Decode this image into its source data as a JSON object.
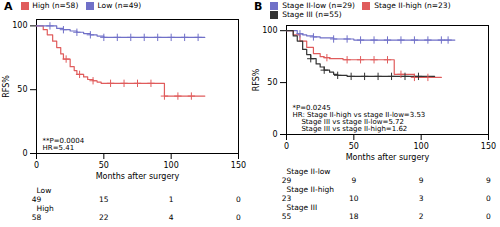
{
  "chart_data": [
    {
      "type": "step",
      "title": "A",
      "xlabel": "Months after surgery",
      "ylabel": "RFS%",
      "xlim": [
        0,
        150
      ],
      "ylim": [
        0,
        105
      ],
      "xticks": [
        0,
        50,
        100,
        150
      ],
      "yticks": [
        0,
        50,
        100
      ],
      "series": [
        {
          "name": "High (n=58)",
          "color": "#E05C5C",
          "x": [
            0,
            5,
            8,
            12,
            15,
            18,
            20,
            25,
            28,
            30,
            35,
            38,
            42,
            45,
            48,
            52,
            55,
            60,
            65,
            70,
            75,
            80,
            85,
            90,
            95,
            100,
            105,
            110,
            115,
            120,
            125
          ],
          "values": [
            100,
            97,
            93,
            88,
            83,
            78,
            74,
            68,
            65,
            62,
            60,
            58,
            57,
            56,
            55,
            55,
            55,
            55,
            55,
            55,
            55,
            55,
            55,
            55,
            45,
            45,
            45,
            45,
            45,
            45,
            45
          ],
          "censor_x": [
            22,
            32,
            42,
            55,
            65,
            75,
            85,
            95,
            105,
            115
          ],
          "censor_values": [
            74,
            62,
            57,
            55,
            55,
            55,
            55,
            45,
            45,
            45
          ]
        },
        {
          "name": "Low (n=49)",
          "color": "#7070C8",
          "x": [
            0,
            8,
            15,
            20,
            25,
            30,
            35,
            40,
            45,
            50,
            55,
            60,
            65,
            70,
            75,
            80,
            85,
            90,
            95,
            100,
            105,
            110,
            115,
            120,
            125
          ],
          "values": [
            100,
            100,
            98,
            97,
            96,
            95,
            94,
            93,
            92,
            91,
            91,
            91,
            91,
            91,
            91,
            91,
            91,
            91,
            91,
            91,
            91,
            91,
            91,
            91,
            91
          ],
          "censor_x": [
            10,
            20,
            30,
            40,
            50,
            60,
            70,
            80,
            90,
            100,
            110,
            120
          ],
          "censor_values": [
            100,
            97,
            95,
            93,
            91,
            91,
            91,
            91,
            91,
            91,
            91,
            91
          ]
        }
      ],
      "annotations": [
        "**P=0.0004",
        "HR=5.41"
      ],
      "risk_table": {
        "x": [
          0,
          50,
          100,
          150
        ],
        "rows": [
          {
            "name": "Low",
            "values": [
              49,
              15,
              1,
              0
            ]
          },
          {
            "name": "High",
            "values": [
              58,
              22,
              4,
              0
            ]
          }
        ]
      }
    },
    {
      "type": "step",
      "title": "B",
      "xlabel": "Months after surgery",
      "ylabel": "RFS%",
      "xlim": [
        0,
        150
      ],
      "ylim": [
        0,
        105
      ],
      "xticks": [
        0,
        50,
        100,
        150
      ],
      "yticks": [
        0,
        50,
        100
      ],
      "series": [
        {
          "name": "Stage II-low (n=29)",
          "color": "#7070C8",
          "x": [
            0,
            5,
            8,
            12,
            15,
            20,
            25,
            30,
            35,
            40,
            45,
            50,
            55,
            60,
            65,
            70,
            75,
            80,
            85,
            90,
            95,
            100,
            105,
            110,
            115,
            120,
            125
          ],
          "values": [
            100,
            100,
            97,
            96,
            95,
            94,
            93,
            93,
            92,
            92,
            92,
            91,
            91,
            91,
            91,
            91,
            91,
            91,
            91,
            91,
            91,
            91,
            91,
            91,
            91,
            91,
            91
          ],
          "censor_x": [
            10,
            20,
            35,
            45,
            55,
            65,
            75,
            85,
            95,
            105,
            115,
            120
          ],
          "censor_values": [
            97,
            94,
            92,
            92,
            91,
            91,
            91,
            91,
            91,
            91,
            91,
            91
          ]
        },
        {
          "name": "Stage II-high (n=23)",
          "color": "#E05C5C",
          "x": [
            0,
            5,
            10,
            15,
            20,
            25,
            28,
            32,
            38,
            42,
            48,
            52,
            58,
            62,
            68,
            75,
            80,
            85,
            90,
            95,
            100,
            105,
            110,
            115
          ],
          "values": [
            100,
            96,
            90,
            84,
            78,
            75,
            74,
            73,
            73,
            72,
            72,
            72,
            72,
            72,
            72,
            72,
            58,
            58,
            58,
            55,
            55,
            55,
            55,
            55
          ],
          "censor_x": [
            30,
            45,
            55,
            65,
            75,
            85,
            95,
            105
          ],
          "censor_values": [
            74,
            72,
            72,
            72,
            72,
            58,
            55,
            55
          ]
        },
        {
          "name": "Stage III (n=55)",
          "color": "#333333",
          "x": [
            0,
            5,
            8,
            12,
            15,
            18,
            22,
            25,
            28,
            32,
            35,
            38,
            42,
            45,
            48,
            52,
            55,
            60,
            65,
            70,
            75,
            80,
            85,
            90,
            95,
            100,
            105,
            110
          ],
          "values": [
            100,
            95,
            90,
            82,
            77,
            73,
            68,
            65,
            62,
            60,
            58,
            57,
            57,
            56,
            56,
            56,
            56,
            56,
            56,
            56,
            56,
            56,
            56,
            56,
            56,
            56,
            56,
            56
          ],
          "censor_x": [
            18,
            28,
            38,
            48,
            58,
            68,
            78,
            88,
            98
          ],
          "censor_values": [
            73,
            62,
            57,
            56,
            56,
            56,
            56,
            56,
            56
          ]
        }
      ],
      "annotations": [
        "*P=0.0245",
        "HR: Stage II-high vs stage II-low=3.53",
        "    Stage III vs stage II-low=5.72",
        "    Stage III vs stage II-high=1.62"
      ],
      "risk_table": {
        "x": [
          0,
          50,
          100,
          150
        ],
        "rows": [
          {
            "name": "Stage II-low",
            "values": [
              29,
              9,
              9,
              9
            ]
          },
          {
            "name": "Stage II-high",
            "values": [
              23,
              10,
              3,
              0
            ]
          },
          {
            "name": "Stage III",
            "values": [
              55,
              18,
              2,
              0
            ]
          }
        ]
      }
    }
  ]
}
